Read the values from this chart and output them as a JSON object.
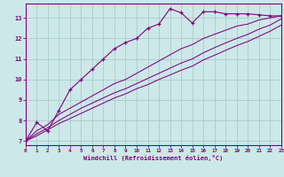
{
  "xlabel": "Windchill (Refroidissement éolien,°C)",
  "bg_color": "#cce8e8",
  "line_color": "#800080",
  "grid_color": "#aacccc",
  "xlim": [
    0,
    23
  ],
  "ylim": [
    6.8,
    13.7
  ],
  "xticks": [
    0,
    1,
    2,
    3,
    4,
    5,
    6,
    7,
    8,
    9,
    10,
    11,
    12,
    13,
    14,
    15,
    16,
    17,
    18,
    19,
    20,
    21,
    22,
    23
  ],
  "yticks": [
    7,
    8,
    9,
    10,
    11,
    12,
    13
  ],
  "series": [
    {
      "x": [
        0,
        1,
        2,
        3,
        4,
        5,
        6,
        7,
        8,
        9,
        10,
        11,
        12,
        13,
        14,
        15,
        16,
        17,
        18,
        19,
        20,
        21,
        22,
        23
      ],
      "y": [
        7.0,
        7.9,
        7.5,
        8.5,
        9.5,
        10.0,
        10.5,
        11.0,
        11.5,
        11.8,
        12.0,
        12.5,
        12.7,
        13.45,
        13.25,
        12.75,
        13.3,
        13.3,
        13.2,
        13.2,
        13.2,
        13.15,
        13.1,
        13.1
      ],
      "marker": true
    },
    {
      "x": [
        0,
        1,
        2,
        3,
        4,
        5,
        6,
        7,
        8,
        9,
        10,
        11,
        12,
        13,
        14,
        15,
        16,
        17,
        18,
        19,
        20,
        21,
        22,
        23
      ],
      "y": [
        7.0,
        7.5,
        7.8,
        8.3,
        8.6,
        8.9,
        9.2,
        9.5,
        9.8,
        10.0,
        10.3,
        10.6,
        10.9,
        11.2,
        11.5,
        11.7,
        12.0,
        12.2,
        12.4,
        12.6,
        12.7,
        12.9,
        13.0,
        13.1
      ],
      "marker": false
    },
    {
      "x": [
        0,
        1,
        2,
        3,
        4,
        5,
        6,
        7,
        8,
        9,
        10,
        11,
        12,
        13,
        14,
        15,
        16,
        17,
        18,
        19,
        20,
        21,
        22,
        23
      ],
      "y": [
        7.0,
        7.35,
        7.65,
        8.0,
        8.3,
        8.6,
        8.85,
        9.1,
        9.35,
        9.55,
        9.8,
        10.05,
        10.3,
        10.55,
        10.8,
        11.0,
        11.3,
        11.55,
        11.78,
        12.0,
        12.2,
        12.45,
        12.65,
        12.95
      ],
      "marker": false
    },
    {
      "x": [
        0,
        1,
        2,
        3,
        4,
        5,
        6,
        7,
        8,
        9,
        10,
        11,
        12,
        13,
        14,
        15,
        16,
        17,
        18,
        19,
        20,
        21,
        22,
        23
      ],
      "y": [
        7.0,
        7.25,
        7.55,
        7.85,
        8.1,
        8.35,
        8.6,
        8.85,
        9.1,
        9.3,
        9.55,
        9.75,
        10.0,
        10.22,
        10.45,
        10.65,
        10.95,
        11.18,
        11.42,
        11.65,
        11.85,
        12.1,
        12.35,
        12.65
      ],
      "marker": false
    }
  ]
}
